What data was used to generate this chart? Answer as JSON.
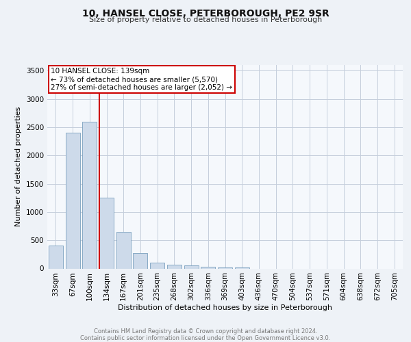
{
  "title1": "10, HANSEL CLOSE, PETERBOROUGH, PE2 9SR",
  "title2": "Size of property relative to detached houses in Peterborough",
  "xlabel": "Distribution of detached houses by size in Peterborough",
  "ylabel": "Number of detached properties",
  "categories": [
    "33sqm",
    "67sqm",
    "100sqm",
    "134sqm",
    "167sqm",
    "201sqm",
    "235sqm",
    "268sqm",
    "302sqm",
    "336sqm",
    "369sqm",
    "403sqm",
    "436sqm",
    "470sqm",
    "504sqm",
    "537sqm",
    "571sqm",
    "604sqm",
    "638sqm",
    "672sqm",
    "705sqm"
  ],
  "values": [
    400,
    2400,
    2600,
    1250,
    650,
    270,
    100,
    70,
    60,
    30,
    20,
    15,
    0,
    0,
    0,
    0,
    0,
    0,
    0,
    0,
    0
  ],
  "bar_color": "#cddaea",
  "bar_edge_color": "#7aa0be",
  "vline_color": "#cc0000",
  "annotation_text": "10 HANSEL CLOSE: 139sqm\n← 73% of detached houses are smaller (5,570)\n27% of semi-detached houses are larger (2,052) →",
  "annotation_box_color": "#ffffff",
  "annotation_box_edge_color": "#cc0000",
  "ylim": [
    0,
    3600
  ],
  "yticks": [
    0,
    500,
    1000,
    1500,
    2000,
    2500,
    3000,
    3500
  ],
  "footer_text": "Contains HM Land Registry data © Crown copyright and database right 2024.\nContains public sector information licensed under the Open Government Licence v3.0.",
  "bg_color": "#eef2f7",
  "plot_bg_color": "#f5f8fc",
  "grid_color": "#c5cedc",
  "title1_fontsize": 10,
  "title2_fontsize": 8,
  "ylabel_fontsize": 8,
  "xlabel_fontsize": 8,
  "tick_fontsize": 7.5,
  "footer_fontsize": 6,
  "annotation_fontsize": 7.5
}
